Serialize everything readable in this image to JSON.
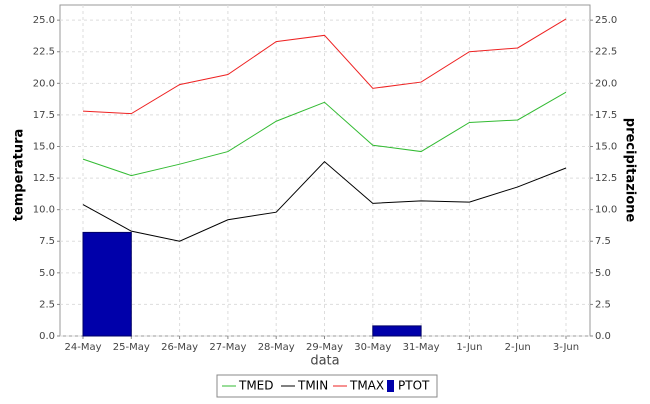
{
  "chart_data": {
    "type": "line",
    "x_label": "data",
    "y_label": "temperatura",
    "y2_label": "precipitazione",
    "categories": [
      "24-May",
      "25-May",
      "26-May",
      "27-May",
      "28-May",
      "29-May",
      "30-May",
      "31-May",
      "1-Jun",
      "2-Jun",
      "3-Jun"
    ],
    "series": [
      {
        "name": "TMED",
        "color": "#33bb33",
        "type": "line",
        "values": [
          14.0,
          12.7,
          13.6,
          14.6,
          17.0,
          18.5,
          15.1,
          14.6,
          16.9,
          17.1,
          19.3
        ]
      },
      {
        "name": "TMIN",
        "color": "#000000",
        "type": "line",
        "values": [
          10.4,
          8.3,
          7.5,
          9.2,
          9.8,
          13.8,
          10.5,
          10.7,
          10.6,
          11.8,
          13.3
        ]
      },
      {
        "name": "TMAX",
        "color": "#ee2222",
        "type": "line",
        "values": [
          17.8,
          17.6,
          19.9,
          20.7,
          23.3,
          23.8,
          19.6,
          20.1,
          22.5,
          22.8,
          25.1
        ]
      },
      {
        "name": "PTOT",
        "color": "#0000aa",
        "type": "bar",
        "axis": "y2",
        "values": [
          8.2,
          0,
          0,
          0,
          0,
          0,
          0.8,
          0,
          0,
          0,
          0
        ]
      }
    ],
    "ylim": [
      0,
      26.2
    ],
    "yticks": [
      {
        "value": 0,
        "label": "0.0"
      },
      2.5,
      {
        "value": 5,
        "label": "5.0"
      },
      7.5,
      {
        "value": 10,
        "label": "10.0"
      },
      12.5,
      {
        "value": 15,
        "label": "15.0"
      },
      17.5,
      {
        "value": 20,
        "label": "20.0"
      },
      22.5,
      {
        "value": 25,
        "label": "25.0"
      }
    ],
    "y2lim": [
      0,
      26.2
    ],
    "y2ticks": [
      {
        "value": 0,
        "label": "0.0"
      },
      2.5,
      {
        "value": 5,
        "label": "5.0"
      },
      7.5,
      {
        "value": 10,
        "label": "10.0"
      },
      12.5,
      {
        "value": 15,
        "label": "15.0"
      },
      17.5,
      {
        "value": 20,
        "label": "20.0"
      },
      22.5,
      {
        "value": 25,
        "label": "25.0"
      }
    ],
    "grid": true,
    "legend": "bottom"
  }
}
